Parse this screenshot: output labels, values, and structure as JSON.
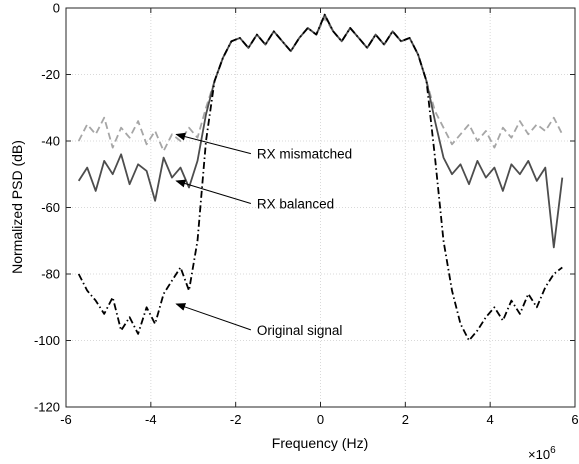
{
  "chart_data": {
    "type": "line",
    "title": "",
    "xlabel": "Frequency (Hz)",
    "ylabel": "Normalized PSD (dB)",
    "x_exponent_label": "×10",
    "x_exponent_power": "6",
    "xlim": [
      -6,
      6
    ],
    "ylim": [
      -120,
      0
    ],
    "xticks": [
      -6,
      -4,
      -2,
      0,
      2,
      4,
      6
    ],
    "yticks": [
      -120,
      -100,
      -80,
      -60,
      -40,
      -20,
      0
    ],
    "grid": true,
    "series": [
      {
        "name": "RX mismatched",
        "color": "#a6a6a6",
        "style": "dashed",
        "x": [
          -5.7,
          -5.5,
          -5.3,
          -5.1,
          -4.9,
          -4.7,
          -4.5,
          -4.3,
          -4.1,
          -3.9,
          -3.7,
          -3.5,
          -3.3,
          -3.1,
          -2.9,
          -2.7,
          -2.5,
          -2.3,
          -2.1,
          -1.9,
          -1.7,
          -1.5,
          -1.3,
          -1.1,
          -0.9,
          -0.7,
          -0.5,
          -0.3,
          -0.1,
          0.1,
          0.3,
          0.5,
          0.7,
          0.9,
          1.1,
          1.3,
          1.5,
          1.7,
          1.9,
          2.1,
          2.3,
          2.5,
          2.7,
          2.9,
          3.1,
          3.3,
          3.5,
          3.7,
          3.9,
          4.1,
          4.3,
          4.5,
          4.7,
          4.9,
          5.1,
          5.3,
          5.5,
          5.7
        ],
        "y": [
          -40,
          -35,
          -38,
          -33,
          -42,
          -36,
          -39,
          -34,
          -41,
          -37,
          -43,
          -38,
          -40,
          -36,
          -39,
          -30,
          -22,
          -15,
          -10,
          -9,
          -12,
          -8,
          -11,
          -7,
          -10,
          -13,
          -9,
          -6,
          -8,
          -3,
          -7,
          -10,
          -6,
          -9,
          -12,
          -8,
          -11,
          -7,
          -10,
          -9,
          -14,
          -22,
          -31,
          -36,
          -41,
          -38,
          -35,
          -40,
          -37,
          -42,
          -36,
          -39,
          -34,
          -38,
          -35,
          -37,
          -33,
          -38
        ]
      },
      {
        "name": "RX balanced",
        "color": "#4d4d4d",
        "style": "solid",
        "x": [
          -5.7,
          -5.5,
          -5.3,
          -5.1,
          -4.9,
          -4.7,
          -4.5,
          -4.3,
          -4.1,
          -3.9,
          -3.7,
          -3.5,
          -3.3,
          -3.1,
          -2.9,
          -2.7,
          -2.5,
          -2.3,
          -2.1,
          -1.9,
          -1.7,
          -1.5,
          -1.3,
          -1.1,
          -0.9,
          -0.7,
          -0.5,
          -0.3,
          -0.1,
          0.1,
          0.3,
          0.5,
          0.7,
          0.9,
          1.1,
          1.3,
          1.5,
          1.7,
          1.9,
          2.1,
          2.3,
          2.5,
          2.7,
          2.9,
          3.1,
          3.3,
          3.5,
          3.7,
          3.9,
          4.1,
          4.3,
          4.5,
          4.7,
          4.9,
          5.1,
          5.3,
          5.5,
          5.7
        ],
        "y": [
          -52,
          -48,
          -55,
          -46,
          -50,
          -44,
          -53,
          -47,
          -49,
          -58,
          -45,
          -51,
          -48,
          -54,
          -46,
          -32,
          -22,
          -15,
          -10,
          -9,
          -12,
          -8,
          -11,
          -7,
          -10,
          -13,
          -9,
          -6,
          -8,
          -2,
          -7,
          -10,
          -6,
          -9,
          -12,
          -8,
          -11,
          -7,
          -10,
          -9,
          -14,
          -22,
          -34,
          -45,
          -50,
          -47,
          -53,
          -46,
          -51,
          -48,
          -55,
          -47,
          -50,
          -46,
          -52,
          -48,
          -72,
          -51
        ]
      },
      {
        "name": "Original signal",
        "color": "#000000",
        "style": "dashdot",
        "x": [
          -5.7,
          -5.5,
          -5.3,
          -5.1,
          -4.9,
          -4.7,
          -4.5,
          -4.3,
          -4.1,
          -3.9,
          -3.7,
          -3.5,
          -3.3,
          -3.1,
          -2.9,
          -2.7,
          -2.5,
          -2.3,
          -2.1,
          -1.9,
          -1.7,
          -1.5,
          -1.3,
          -1.1,
          -0.9,
          -0.7,
          -0.5,
          -0.3,
          -0.1,
          0.1,
          0.3,
          0.5,
          0.7,
          0.9,
          1.1,
          1.3,
          1.5,
          1.7,
          1.9,
          2.1,
          2.3,
          2.5,
          2.7,
          2.9,
          3.1,
          3.3,
          3.5,
          3.7,
          3.9,
          4.1,
          4.3,
          4.5,
          4.7,
          4.9,
          5.1,
          5.3,
          5.5,
          5.7
        ],
        "y": [
          -80,
          -85,
          -88,
          -92,
          -87,
          -97,
          -93,
          -98,
          -90,
          -95,
          -86,
          -82,
          -78,
          -85,
          -70,
          -40,
          -22,
          -15,
          -10,
          -9,
          -12,
          -8,
          -11,
          -7,
          -10,
          -13,
          -9,
          -6,
          -8,
          -2,
          -7,
          -10,
          -6,
          -9,
          -12,
          -8,
          -11,
          -7,
          -10,
          -9,
          -14,
          -22,
          -45,
          -70,
          -85,
          -95,
          -100,
          -97,
          -93,
          -90,
          -94,
          -88,
          -92,
          -86,
          -90,
          -84,
          -80,
          -78
        ]
      }
    ],
    "annotations": [
      {
        "text": "RX mismatched",
        "point": [
          -3.4,
          -38
        ],
        "text_at": [
          -1.5,
          -45
        ]
      },
      {
        "text": "RX balanced",
        "point": [
          -3.4,
          -52
        ],
        "text_at": [
          -1.5,
          -60
        ]
      },
      {
        "text": "Original signal",
        "point": [
          -3.4,
          -89
        ],
        "text_at": [
          -1.5,
          -98
        ]
      }
    ]
  }
}
